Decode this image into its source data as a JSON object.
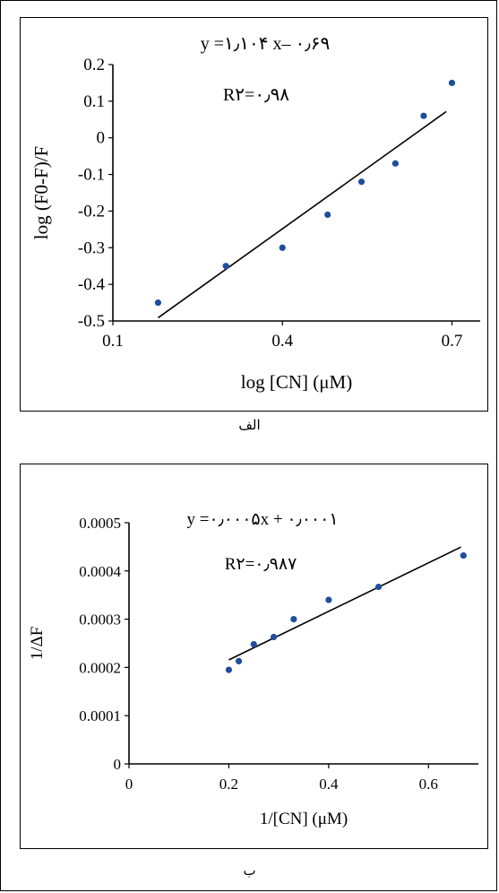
{
  "chart_data": [
    {
      "type": "scatter",
      "panel_label": "الف",
      "equation": "y =۱٫۱۰۴ x– ۰٫۶۹",
      "r2_text": "R۲=۰٫۹۸",
      "xlabel": "log [CN] (μM)",
      "ylabel": "log (F0-F)/F",
      "xlim": [
        0.1,
        0.75
      ],
      "ylim": [
        -0.5,
        0.2
      ],
      "xticks": [
        0.1,
        0.4,
        0.7
      ],
      "xtick_labels": [
        "0.1",
        "0.4",
        "0.7"
      ],
      "yticks": [
        0.2,
        0.1,
        0,
        -0.1,
        -0.2,
        -0.3,
        -0.4,
        -0.5
      ],
      "ytick_labels": [
        "0.2",
        "0.1",
        "0",
        "-0.1",
        "-0.2",
        "-0.3",
        "-0.4",
        "-0.5"
      ],
      "grid": false,
      "points": {
        "x": [
          0.18,
          0.3,
          0.4,
          0.48,
          0.54,
          0.6,
          0.65,
          0.7
        ],
        "y": [
          -0.45,
          -0.35,
          -0.3,
          -0.21,
          -0.12,
          -0.07,
          0.06,
          0.15
        ]
      },
      "trendline": {
        "slope": 1.104,
        "intercept": -0.69,
        "x_range": [
          0.18,
          0.69
        ]
      },
      "colors": {
        "points": "#1f4e9c",
        "line": "#000000"
      }
    },
    {
      "type": "scatter",
      "panel_label": "ب",
      "equation": "y =۰٫۰۰۰۵x + ۰٫۰۰۰۱",
      "r2_text": "R۲=۰٫۹۸۷",
      "xlabel": "1/[CN] (μM)",
      "ylabel": "1/ΔF",
      "xlim": [
        0,
        0.7
      ],
      "ylim": [
        0,
        0.0005
      ],
      "xticks": [
        0,
        0.2,
        0.4,
        0.6
      ],
      "xtick_labels": [
        "0",
        "0.2",
        "0.4",
        "0.6"
      ],
      "yticks": [
        0,
        0.0001,
        0.0002,
        0.0003,
        0.0004,
        0.0005
      ],
      "ytick_labels": [
        "0",
        "0.0001",
        "0.0002",
        "0.0003",
        "0.0004",
        "0.0005"
      ],
      "grid": false,
      "points": {
        "x": [
          0.2,
          0.22,
          0.25,
          0.29,
          0.33,
          0.4,
          0.5,
          0.67
        ],
        "y": [
          0.000195,
          0.000213,
          0.000248,
          0.000263,
          0.0003,
          0.00034,
          0.000367,
          0.000432
        ]
      },
      "trendline": {
        "slope": 0.000503,
        "intercept": 0.000115,
        "x_range": [
          0.2,
          0.665
        ]
      },
      "colors": {
        "points": "#1f4e9c",
        "line": "#000000"
      }
    }
  ]
}
